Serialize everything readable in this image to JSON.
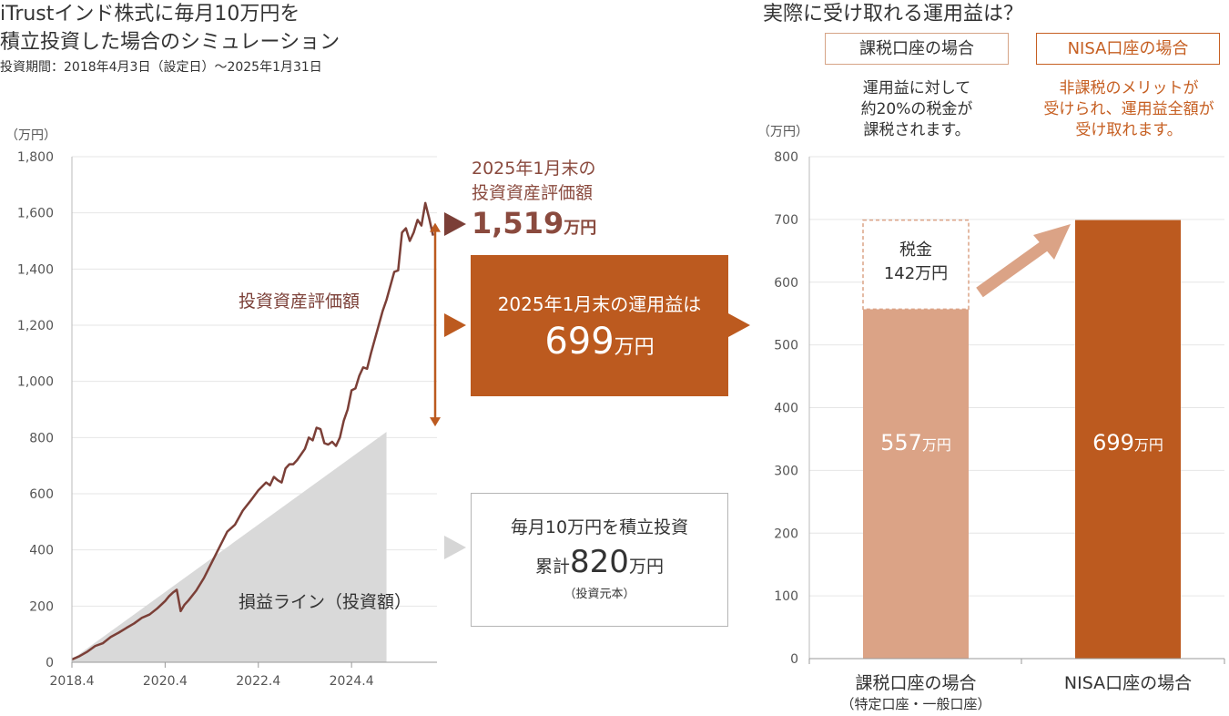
{
  "header": {
    "title_line1": "iTrustインド株式に毎月10万円を",
    "title_line2": "積立投資した場合のシミュレーション",
    "period": "投資期間：2018年4月3日（設定日）～2025年1月31日",
    "right_title": "実際に受け取れる運用益は？"
  },
  "accounts": {
    "taxed_label": "課税口座の場合",
    "nisa_label": "NISA口座の場合",
    "taxed_desc": [
      "運用益に対して",
      "約20%の税金が",
      "課税されます。"
    ],
    "nisa_desc": [
      "非課税のメリットが",
      "受けられ、運用益全額が",
      "受け取れます。"
    ]
  },
  "callouts": {
    "eval_label1": "2025年1月末の",
    "eval_label2": "投資資産評価額",
    "eval_value": "1,519",
    "eval_unit": "万円",
    "profit_label": "2025年1月末の運用益は",
    "profit_value": "699",
    "profit_unit": "万円",
    "principal_label1": "毎月10万円を積立投資",
    "principal_prefix": "累計",
    "principal_value": "820",
    "principal_unit": "万円",
    "principal_note": "（投資元本）",
    "series_label_eval": "投資資産評価額",
    "series_label_principal": "損益ライン（投資額）"
  },
  "chart_data": [
    {
      "type": "line",
      "unit_label": "（万円）",
      "ylim": [
        0,
        1800
      ],
      "yticks": [
        "0",
        "200",
        "400",
        "600",
        "800",
        "1,000",
        "1,200",
        "1,400",
        "1,600",
        "1,800"
      ],
      "xticks": [
        "2018.4",
        "2020.4",
        "2022.4",
        "2024.4"
      ],
      "grid": true,
      "series": [
        {
          "name": "投資資産評価額",
          "color": "#7b3f37",
          "points": [
            [
              0,
              10
            ],
            [
              2,
              22
            ],
            [
              4,
              38
            ],
            [
              6,
              58
            ],
            [
              8,
              68
            ],
            [
              10,
              90
            ],
            [
              12,
              105
            ],
            [
              14,
              122
            ],
            [
              16,
              138
            ],
            [
              18,
              158
            ],
            [
              20,
              170
            ],
            [
              22,
              192
            ],
            [
              24,
              218
            ],
            [
              25,
              235
            ],
            [
              26,
              248
            ],
            [
              27,
              258
            ],
            [
              28,
              182
            ],
            [
              29,
              205
            ],
            [
              30,
              220
            ],
            [
              32,
              255
            ],
            [
              34,
              300
            ],
            [
              36,
              355
            ],
            [
              38,
              410
            ],
            [
              40,
              465
            ],
            [
              42,
              490
            ],
            [
              44,
              540
            ],
            [
              46,
              575
            ],
            [
              48,
              612
            ],
            [
              50,
              640
            ],
            [
              51,
              630
            ],
            [
              52,
              660
            ],
            [
              53,
              648
            ],
            [
              54,
              640
            ],
            [
              55,
              690
            ],
            [
              56,
              705
            ],
            [
              57,
              705
            ],
            [
              58,
              720
            ],
            [
              60,
              760
            ],
            [
              61,
              800
            ],
            [
              62,
              790
            ],
            [
              63,
              835
            ],
            [
              64,
              830
            ],
            [
              65,
              780
            ],
            [
              66,
              775
            ],
            [
              67,
              785
            ],
            [
              68,
              770
            ],
            [
              69,
              800
            ],
            [
              70,
              860
            ],
            [
              71,
              900
            ],
            [
              72,
              968
            ],
            [
              73,
              975
            ],
            [
              74,
              1020
            ],
            [
              75,
              1050
            ],
            [
              76,
              1045
            ],
            [
              77,
              1100
            ],
            [
              78,
              1150
            ],
            [
              79,
              1200
            ],
            [
              80,
              1250
            ],
            [
              81,
              1290
            ],
            [
              82,
              1340
            ],
            [
              83,
              1390
            ],
            [
              84,
              1395
            ],
            [
              85,
              1530
            ],
            [
              86,
              1545
            ],
            [
              87,
              1500
            ],
            [
              88,
              1530
            ],
            [
              89,
              1575
            ],
            [
              90,
              1555
            ],
            [
              91,
              1635
            ],
            [
              92,
              1580
            ],
            [
              93,
              1519
            ]
          ]
        },
        {
          "name": "損益ライン（投資額）",
          "color": "#d9d9d9",
          "points": [
            [
              0,
              10
            ],
            [
              81,
              820
            ]
          ]
        }
      ]
    },
    {
      "type": "bar",
      "unit_label": "（万円）",
      "ylim": [
        0,
        800
      ],
      "yticks": [
        "0",
        "100",
        "200",
        "300",
        "400",
        "500",
        "600",
        "700",
        "800"
      ],
      "categories": [
        "課税口座の場合",
        "NISA口座の場合"
      ],
      "category_sub": [
        "（特定口座・一般口座）",
        ""
      ],
      "series": [
        {
          "name": "受取額",
          "values": [
            557,
            699
          ],
          "colors": [
            "#dba386",
            "#bc5a1f"
          ]
        },
        {
          "name": "税金",
          "values": [
            142,
            0
          ]
        }
      ],
      "tax_label1": "税金",
      "tax_label2": "142万円",
      "bar_labels": [
        "557",
        "699"
      ],
      "bar_unit": "万円"
    }
  ]
}
